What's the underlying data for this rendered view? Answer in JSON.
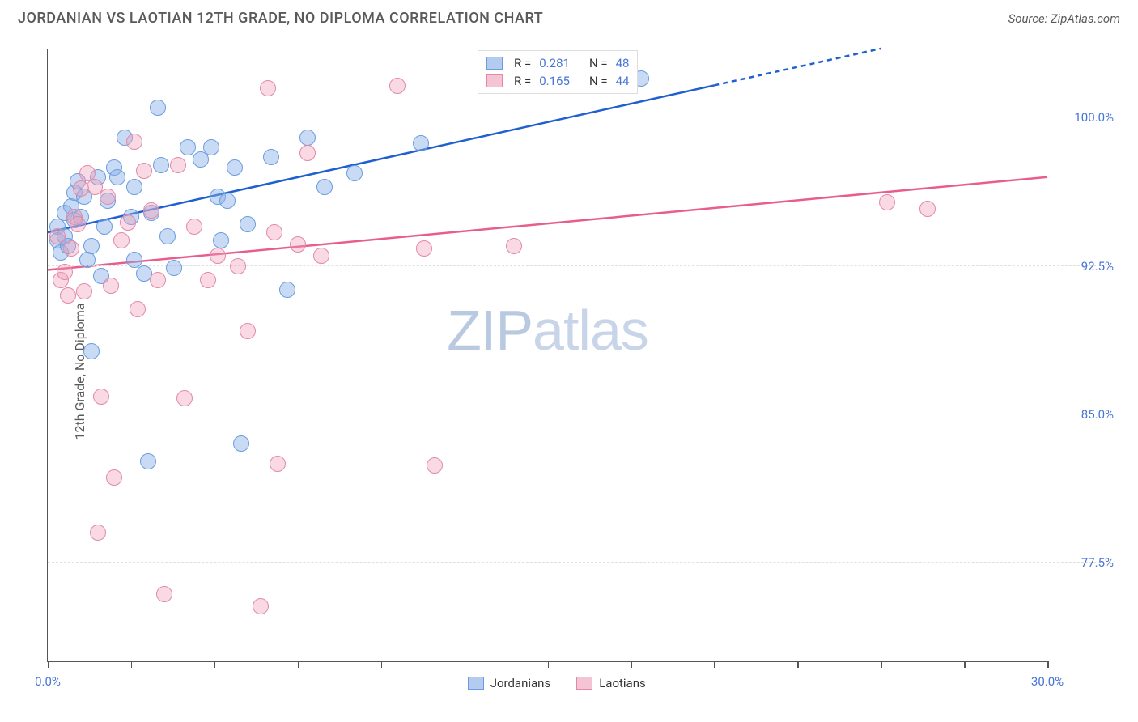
{
  "title": "JORDANIAN VS LAOTIAN 12TH GRADE, NO DIPLOMA CORRELATION CHART",
  "source": "Source: ZipAtlas.com",
  "ylabel": "12th Grade, No Diploma",
  "watermark_a": "ZIP",
  "watermark_b": "atlas",
  "chart": {
    "type": "scatter",
    "background_color": "#ffffff",
    "grid_color": "#e0e0e0",
    "axis_color": "#555555",
    "tick_label_color": "#4876d6",
    "marker_radius": 10,
    "marker_stroke_width": 1.2,
    "xlim": [
      0.0,
      30.0
    ],
    "ylim": [
      72.5,
      103.5
    ],
    "yticks": [
      {
        "v": 100.0,
        "label": "100.0%"
      },
      {
        "v": 92.5,
        "label": "92.5%"
      },
      {
        "v": 85.0,
        "label": "85.0%"
      },
      {
        "v": 77.5,
        "label": "77.5%"
      }
    ],
    "xtick_positions": [
      0.0,
      2.5,
      5.0,
      7.5,
      10.0,
      12.5,
      15.0,
      17.5,
      20.0,
      22.5,
      25.0,
      27.5,
      30.0
    ],
    "xtick_labels": [
      {
        "v": 0.0,
        "label": "0.0%"
      },
      {
        "v": 30.0,
        "label": "30.0%"
      }
    ],
    "series": [
      {
        "name": "Jordanians",
        "fill": "rgba(135,175,230,0.45)",
        "stroke": "#6a9de0",
        "swatch_fill": "#b3cbef",
        "swatch_border": "#6a9de0",
        "r": "0.281",
        "n": "48",
        "trend": {
          "x1": 0.0,
          "y1": 94.2,
          "x2": 25.0,
          "y2": 103.5,
          "solid_until_x": 20.0,
          "color": "#1f5fd0",
          "width": 2.5
        },
        "points": [
          [
            0.3,
            93.8
          ],
          [
            0.3,
            94.5
          ],
          [
            0.5,
            94.0
          ],
          [
            0.4,
            93.2
          ],
          [
            0.6,
            93.5
          ],
          [
            0.5,
            95.2
          ],
          [
            0.7,
            95.5
          ],
          [
            0.8,
            96.2
          ],
          [
            0.8,
            94.8
          ],
          [
            0.9,
            96.8
          ],
          [
            1.0,
            95.0
          ],
          [
            1.1,
            96.0
          ],
          [
            1.2,
            92.8
          ],
          [
            1.3,
            93.5
          ],
          [
            1.3,
            88.2
          ],
          [
            1.5,
            97.0
          ],
          [
            1.6,
            92.0
          ],
          [
            1.7,
            94.5
          ],
          [
            1.8,
            95.8
          ],
          [
            2.0,
            97.5
          ],
          [
            2.1,
            97.0
          ],
          [
            2.3,
            99.0
          ],
          [
            2.5,
            95.0
          ],
          [
            2.6,
            96.5
          ],
          [
            2.6,
            92.8
          ],
          [
            2.9,
            92.1
          ],
          [
            3.0,
            82.6
          ],
          [
            3.1,
            95.2
          ],
          [
            3.3,
            100.5
          ],
          [
            3.4,
            97.6
          ],
          [
            3.6,
            94.0
          ],
          [
            3.8,
            92.4
          ],
          [
            4.2,
            98.5
          ],
          [
            4.6,
            97.9
          ],
          [
            4.9,
            98.5
          ],
          [
            5.1,
            96.0
          ],
          [
            5.2,
            93.8
          ],
          [
            5.4,
            95.8
          ],
          [
            5.6,
            97.5
          ],
          [
            5.8,
            83.5
          ],
          [
            6.0,
            94.6
          ],
          [
            6.7,
            98.0
          ],
          [
            7.2,
            91.3
          ],
          [
            7.8,
            99.0
          ],
          [
            8.3,
            96.5
          ],
          [
            9.2,
            97.2
          ],
          [
            11.2,
            98.7
          ],
          [
            17.8,
            102.0
          ]
        ]
      },
      {
        "name": "Laotians",
        "fill": "rgba(240,160,185,0.40)",
        "stroke": "#e389a8",
        "swatch_fill": "#f5c4d4",
        "swatch_border": "#e389a8",
        "r": "0.165",
        "n": "44",
        "trend": {
          "x1": 0.0,
          "y1": 92.3,
          "x2": 30.0,
          "y2": 97.0,
          "solid_until_x": 30.0,
          "color": "#e85d8f",
          "width": 2.5
        },
        "points": [
          [
            0.3,
            94.0
          ],
          [
            0.4,
            91.8
          ],
          [
            0.5,
            92.2
          ],
          [
            0.6,
            91.0
          ],
          [
            0.7,
            93.4
          ],
          [
            0.8,
            95.0
          ],
          [
            0.9,
            94.6
          ],
          [
            1.0,
            96.4
          ],
          [
            1.1,
            91.2
          ],
          [
            1.2,
            97.2
          ],
          [
            1.4,
            96.5
          ],
          [
            1.5,
            79.0
          ],
          [
            1.6,
            85.9
          ],
          [
            1.8,
            96.0
          ],
          [
            1.9,
            91.5
          ],
          [
            2.0,
            81.8
          ],
          [
            2.2,
            93.8
          ],
          [
            2.4,
            94.7
          ],
          [
            2.6,
            98.8
          ],
          [
            2.7,
            90.3
          ],
          [
            2.9,
            97.3
          ],
          [
            3.1,
            95.3
          ],
          [
            3.3,
            91.8
          ],
          [
            3.5,
            75.9
          ],
          [
            3.9,
            97.6
          ],
          [
            4.1,
            85.8
          ],
          [
            4.4,
            94.5
          ],
          [
            4.8,
            91.8
          ],
          [
            5.1,
            93.0
          ],
          [
            5.7,
            92.5
          ],
          [
            6.0,
            89.2
          ],
          [
            6.4,
            75.3
          ],
          [
            6.6,
            101.5
          ],
          [
            6.8,
            94.2
          ],
          [
            6.9,
            82.5
          ],
          [
            7.5,
            93.6
          ],
          [
            7.8,
            98.2
          ],
          [
            8.2,
            93.0
          ],
          [
            10.5,
            101.6
          ],
          [
            11.3,
            93.4
          ],
          [
            11.6,
            82.4
          ],
          [
            14.0,
            93.5
          ],
          [
            25.2,
            95.7
          ],
          [
            26.4,
            95.4
          ]
        ]
      }
    ]
  }
}
